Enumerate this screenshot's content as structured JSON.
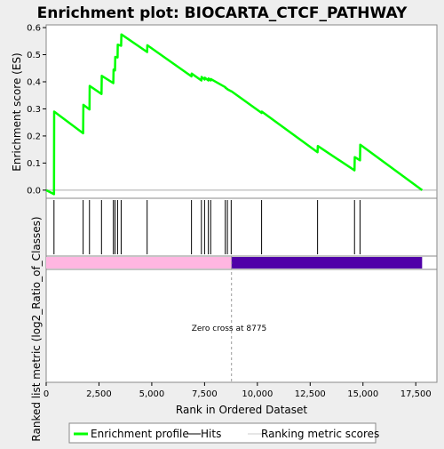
{
  "chart_data": {
    "type": "line",
    "title": "Enrichment plot: BIOCARTA_CTCF_PATHWAY",
    "ylabel_top": "Enrichment score (ES)",
    "ylabel_bottom": "Ranked list metric (log2_Ratio_of_Classes)",
    "xlabel": "Rank in Ordered Dataset",
    "xlim": [
      0,
      18500
    ],
    "ylim": [
      -0.03,
      0.61
    ],
    "x_ticks": [
      {
        "v": 0,
        "label": "0"
      },
      {
        "v": 2500,
        "label": "2,500"
      },
      {
        "v": 5000,
        "label": "5,000"
      },
      {
        "v": 7500,
        "label": "7,500"
      },
      {
        "v": 10000,
        "label": "10,000"
      },
      {
        "v": 12500,
        "label": "12,500"
      },
      {
        "v": 15000,
        "label": "15,000"
      },
      {
        "v": 17500,
        "label": "17,500"
      }
    ],
    "y_ticks": [
      {
        "v": 0.0,
        "label": "0.0"
      },
      {
        "v": 0.1,
        "label": "0.1"
      },
      {
        "v": 0.2,
        "label": "0.2"
      },
      {
        "v": 0.3,
        "label": "0.3"
      },
      {
        "v": 0.4,
        "label": "0.4"
      },
      {
        "v": 0.5,
        "label": "0.5"
      },
      {
        "v": 0.6,
        "label": "0.6"
      }
    ],
    "series": [
      {
        "name": "Enrichment profile",
        "color": "#00ff00",
        "x": [
          0,
          370,
          380,
          1750,
          1760,
          2050,
          2060,
          2620,
          2630,
          3180,
          3190,
          3260,
          3270,
          3380,
          3390,
          3550,
          3560,
          4780,
          4790,
          6880,
          6890,
          7350,
          7360,
          7500,
          7510,
          7680,
          7690,
          7790,
          7800,
          8480,
          8490,
          8580,
          8590,
          8760,
          8770,
          10200,
          10210,
          12850,
          12860,
          14600,
          14610,
          14860,
          14870,
          17800
        ],
        "y": [
          0.0,
          -0.015,
          0.29,
          0.21,
          0.315,
          0.298,
          0.385,
          0.355,
          0.422,
          0.395,
          0.445,
          0.442,
          0.492,
          0.49,
          0.537,
          0.533,
          0.575,
          0.51,
          0.535,
          0.42,
          0.43,
          0.405,
          0.418,
          0.408,
          0.415,
          0.405,
          0.412,
          0.405,
          0.41,
          0.38,
          0.378,
          0.373,
          0.372,
          0.365,
          0.365,
          0.285,
          0.29,
          0.14,
          0.163,
          0.073,
          0.122,
          0.11,
          0.168,
          0.0
        ]
      }
    ],
    "hits": [
      370,
      1750,
      2050,
      2620,
      3180,
      3260,
      3380,
      3550,
      4780,
      6880,
      7350,
      7500,
      7680,
      7790,
      8480,
      8580,
      8760,
      10200,
      12850,
      14600,
      14860
    ],
    "ranking_metric": {
      "positive_color": "#ffb6e1",
      "negative_color": "#5000a8",
      "positive_range": [
        0,
        8775
      ],
      "negative_range": [
        8775,
        17800
      ]
    },
    "zero_cross": {
      "x": 8775,
      "label": "Zero cross at 8775"
    },
    "legend": {
      "placement": "bottom",
      "items": [
        {
          "label": "Enrichment profile",
          "color": "#00ff00",
          "icon": "green-line"
        },
        {
          "label": "Hits",
          "color": "#000000",
          "icon": "black-line"
        },
        {
          "label": "Ranking metric scores",
          "color": "#cccccc",
          "icon": "gray-line"
        }
      ]
    }
  }
}
